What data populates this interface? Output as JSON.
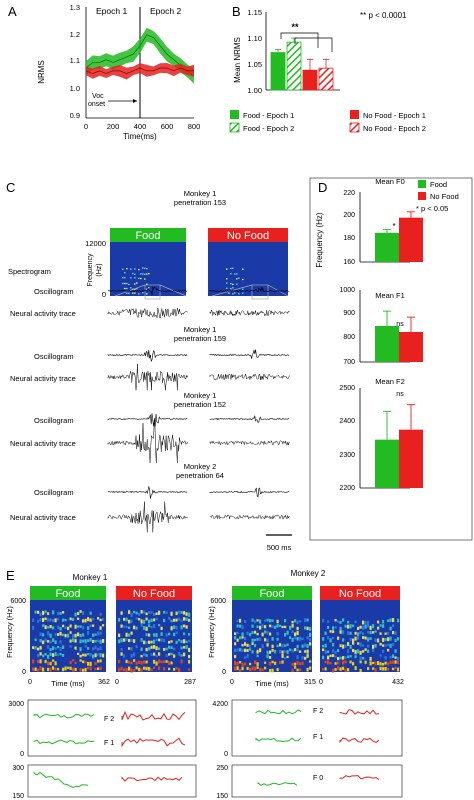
{
  "panels": {
    "A": {
      "letter": "A",
      "epoch1": "Epoch 1",
      "epoch2": "Epoch 2",
      "ylabel": "NRMS",
      "xlabel": "Time(ms)",
      "yticks": [
        "1.3",
        "1.2",
        "1.1",
        "1.0",
        "0.9"
      ],
      "xticks": [
        "0",
        "200",
        "400",
        "600",
        "800"
      ],
      "onset_label_1": "Voc",
      "onset_label_2": "onset"
    },
    "B": {
      "letter": "B",
      "ylabel": "Mean NRMS",
      "yticks": [
        "1.15",
        "1.10",
        "1.05",
        "1.00"
      ],
      "sig_stars": "**",
      "sig_note": "** p < 0.0001",
      "legend": [
        "Food - Epoch 1",
        "No Food - Epoch 1",
        "Food - Epoch 2",
        "No Food - Epoch 2"
      ]
    },
    "C": {
      "letter": "C",
      "header_1": "Monkey 1",
      "header_1b": "penetration 153",
      "food_label": "Food",
      "nofood_label": "No Food",
      "freq_label": "Frequency",
      "hz_label": "(Hz)",
      "freq_top": "12000",
      "freq_zero": "0",
      "spectrogram_label": "Spectrogram",
      "oscillogram_label": "Oscillogram",
      "neural_label": "Neural activity trace",
      "groups": [
        {
          "monkey": "Monkey 1",
          "penetration": "penetration 159"
        },
        {
          "monkey": "Monkey 1",
          "penetration": "penetration 152"
        },
        {
          "monkey": "Monkey 2",
          "penetration": "penetration 64"
        }
      ],
      "scale_label": "500 ms"
    },
    "D": {
      "letter": "D",
      "ylabel": "Frequency (Hz)",
      "legend_food": "Food",
      "legend_nofood": "No Food",
      "sig_note": "* p < 0.05",
      "subplots": [
        {
          "title": "Mean F0",
          "sig": "*",
          "yticks": [
            "220",
            "200",
            "180",
            "160"
          ]
        },
        {
          "title": "Mean F1",
          "sig": "ns",
          "yticks": [
            "1000",
            "900",
            "800",
            "700"
          ]
        },
        {
          "title": "Mean F2",
          "sig": "ns",
          "yticks": [
            "2500",
            "2400",
            "2300",
            "2200"
          ]
        }
      ]
    },
    "E": {
      "letter": "E",
      "monkey1": "Monkey 1",
      "monkey2": "Monkey 2",
      "food_label": "Food",
      "nofood_label": "No Food",
      "freq_label": "Frequency (Hz)",
      "time_label": "Time (ms)",
      "spec_top": "6000",
      "spec_zero": "0",
      "m1_food_xmax": "362",
      "m1_nofood_xmax": "287",
      "m2_food_xmax": "315",
      "m2_nofood_xmax": "432",
      "x_zero": "0",
      "m1_formant_ticks": [
        "3000",
        "0"
      ],
      "m1_f0_ticks": [
        "300",
        "150"
      ],
      "m2_formant_ticks": [
        "4200",
        "0"
      ],
      "m2_f0_ticks": [
        "250",
        "150"
      ],
      "f2_label": "F 2",
      "f1_label": "F 1",
      "f0_label": "F 0"
    }
  },
  "colors": {
    "food": "#22bb22",
    "nofood": "#e8201e",
    "spec_bg": "#1a3aa8"
  },
  "chart_data": [
    {
      "id": "A",
      "type": "line",
      "xlabel": "Time(ms)",
      "ylabel": "NRMS",
      "xlim": [
        0,
        800
      ],
      "ylim": [
        0.9,
        1.3
      ],
      "series": [
        {
          "x": [
            0,
            50,
            100,
            150,
            200,
            250,
            300,
            350,
            400,
            450,
            500,
            550,
            600,
            650,
            700,
            750,
            800
          ],
          "values": [
            1.08,
            1.1,
            1.1,
            1.11,
            1.1,
            1.11,
            1.12,
            1.13,
            1.16,
            1.2,
            1.19,
            1.16,
            1.13,
            1.11,
            1.09,
            1.07,
            1.05
          ]
        },
        {
          "x": [
            0,
            50,
            100,
            150,
            200,
            250,
            300,
            350,
            400,
            450,
            500,
            550,
            600,
            650,
            700,
            750,
            800
          ],
          "values": [
            1.07,
            1.06,
            1.07,
            1.06,
            1.07,
            1.07,
            1.06,
            1.07,
            1.08,
            1.07,
            1.07,
            1.08,
            1.08,
            1.07,
            1.08,
            1.07,
            1.07
          ]
        }
      ]
    },
    {
      "id": "B",
      "type": "bar",
      "ylabel": "Mean NRMS",
      "ylim": [
        1.0,
        1.15
      ],
      "categories": [
        "Food - Epoch 1",
        "Food - Epoch 2",
        "No Food - Epoch 1",
        "No Food - Epoch 2"
      ],
      "values": [
        1.072,
        1.092,
        1.038,
        1.042
      ],
      "errors": [
        0.006,
        0.008,
        0.021,
        0.017
      ]
    },
    {
      "id": "D-F0",
      "type": "bar",
      "ylim": [
        160,
        220
      ],
      "categories": [
        "Food",
        "No Food"
      ],
      "values": [
        185,
        198
      ],
      "errors": [
        3,
        5
      ]
    },
    {
      "id": "D-F1",
      "type": "bar",
      "ylim": [
        700,
        1000
      ],
      "categories": [
        "Food",
        "No Food"
      ],
      "values": [
        850,
        825
      ],
      "errors": [
        62,
        62
      ]
    },
    {
      "id": "D-F2",
      "type": "bar",
      "ylim": [
        2200,
        2500
      ],
      "categories": [
        "Food",
        "No Food"
      ],
      "values": [
        2345,
        2375
      ],
      "errors": [
        85,
        75
      ]
    }
  ]
}
